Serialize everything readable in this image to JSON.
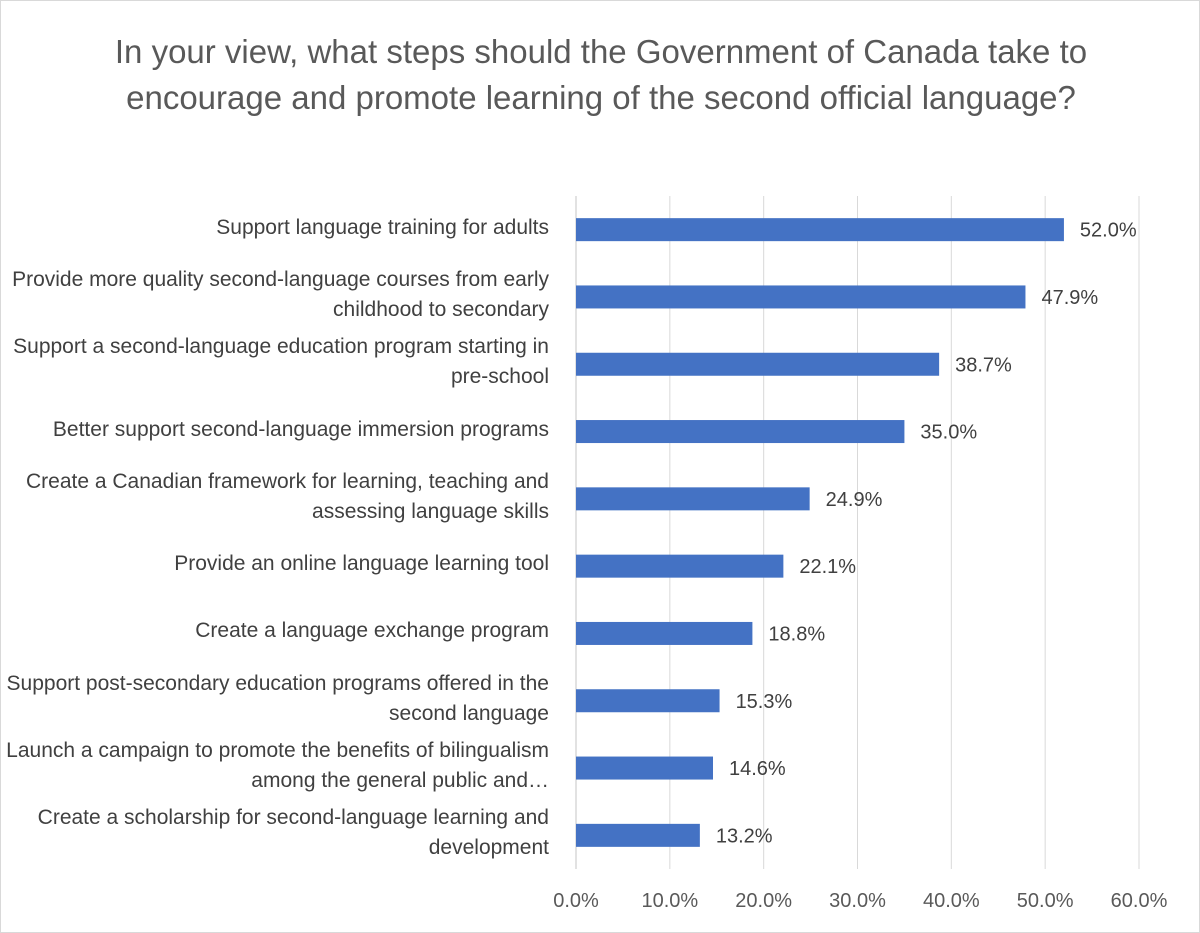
{
  "chart_data": {
    "type": "bar",
    "orientation": "horizontal",
    "title": "In your view, what steps should the Government of Canada take to encourage and promote learning of the second official language?",
    "categories": [
      "Support language training for adults",
      "Provide more quality second-language courses from early childhood to secondary",
      "Support a second-language education program starting in pre-school",
      "Better support second-language immersion programs",
      "Create a Canadian framework for learning, teaching and assessing language skills",
      "Provide an online language learning tool",
      "Create a language exchange program",
      "Support post-secondary education programs offered in the second language",
      "Launch a campaign to promote the benefits of bilingualism among the general public and…",
      "Create a scholarship for second-language learning and development"
    ],
    "values": [
      52.0,
      47.9,
      38.7,
      35.0,
      24.9,
      22.1,
      18.8,
      15.3,
      14.6,
      13.2
    ],
    "value_labels": [
      "52.0%",
      "47.9%",
      "38.7%",
      "35.0%",
      "24.9%",
      "22.1%",
      "18.8%",
      "15.3%",
      "14.6%",
      "13.2%"
    ],
    "xlim": [
      0,
      60
    ],
    "x_ticks": [
      "0.0%",
      "10.0%",
      "20.0%",
      "30.0%",
      "40.0%",
      "50.0%",
      "60.0%"
    ],
    "grid": "vertical",
    "bar_color": "#4472c4",
    "gridline_color": "#d9d9d9"
  }
}
